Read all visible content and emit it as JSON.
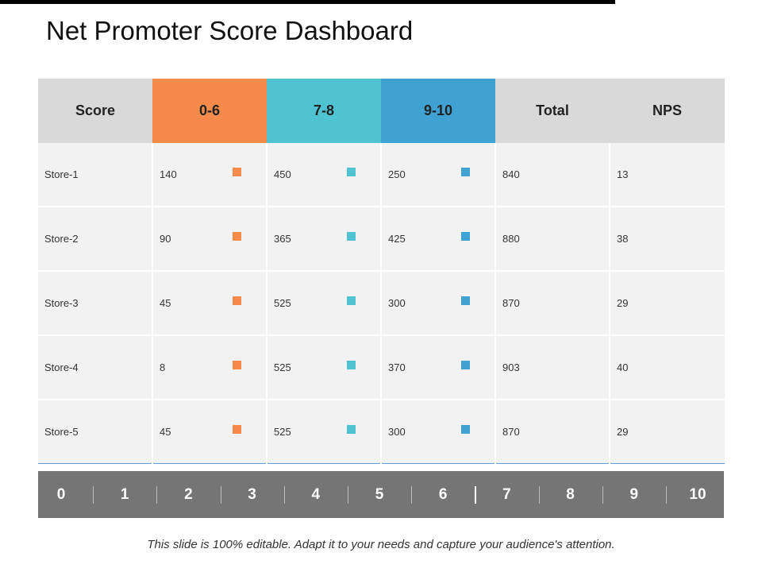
{
  "slide": {
    "title": "Net Promoter Score Dashboard",
    "footer": "This slide is 100% editable. Adapt it to your needs and capture your audience's attention."
  },
  "colors": {
    "detractors": "#f58b4b",
    "passives": "#4fc3d1",
    "promoters": "#3fa2d3",
    "header_gray": "#d9d9d9",
    "cell_gray": "#f2f2f2",
    "scale_bar": "#757575"
  },
  "table": {
    "headers": {
      "score": "Score",
      "detractors": "0-6",
      "passives": "7-8",
      "promoters": "9-10",
      "total": "Total",
      "nps": "NPS"
    },
    "rows": [
      {
        "store": "Store-1",
        "detractors": "140",
        "passives": "450",
        "promoters": "250",
        "total": "840",
        "nps": "13"
      },
      {
        "store": "Store-2",
        "detractors": "90",
        "passives": "365",
        "promoters": "425",
        "total": "880",
        "nps": "38"
      },
      {
        "store": "Store-3",
        "detractors": "45",
        "passives": "525",
        "promoters": "300",
        "total": "870",
        "nps": "29"
      },
      {
        "store": "Store-4",
        "detractors": "8",
        "passives": "525",
        "promoters": "370",
        "total": "903",
        "nps": "40"
      },
      {
        "store": "Store-5",
        "detractors": "45",
        "passives": "525",
        "promoters": "300",
        "total": "870",
        "nps": "29"
      }
    ]
  },
  "scale": {
    "labels": [
      "0",
      "1",
      "2",
      "3",
      "4",
      "5",
      "6",
      "7",
      "8",
      "9",
      "10"
    ]
  }
}
